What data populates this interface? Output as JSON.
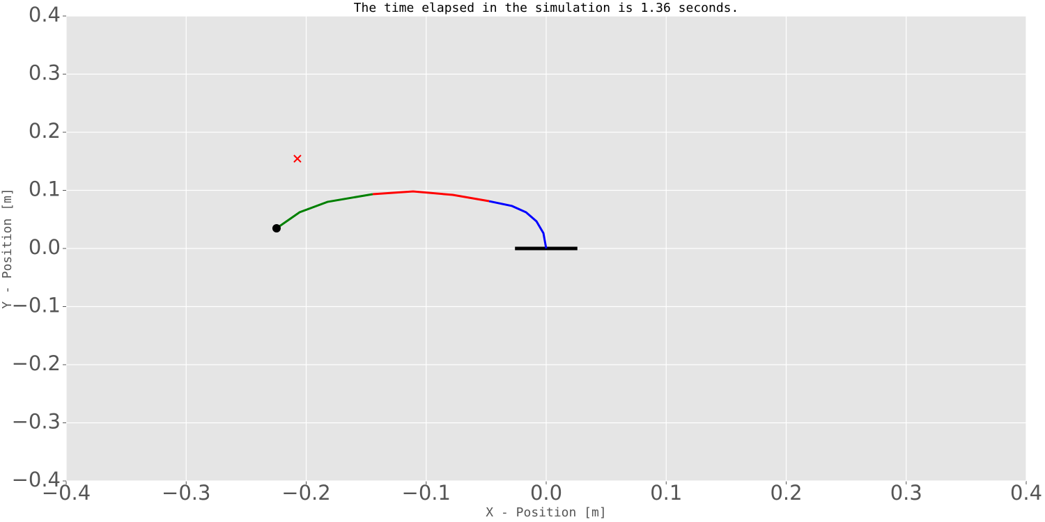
{
  "chart_data": {
    "type": "line",
    "title": "The time elapsed in the simulation is 1.36 seconds.",
    "x_label": "X - Position [m]",
    "y_label": "Y - Position [m]",
    "xlim": [
      -0.4,
      0.4
    ],
    "ylim": [
      -0.4,
      0.4
    ],
    "xticks": [
      {
        "value": -0.4,
        "label": "−0.4"
      },
      {
        "value": -0.3,
        "label": "−0.3"
      },
      {
        "value": -0.2,
        "label": "−0.2"
      },
      {
        "value": -0.1,
        "label": "−0.1"
      },
      {
        "value": 0,
        "label": "0.0"
      },
      {
        "value": 0.1,
        "label": "0.1"
      },
      {
        "value": 0.2,
        "label": "0.2"
      },
      {
        "value": 0.3,
        "label": "0.3"
      },
      {
        "value": 0.4,
        "label": "0.4"
      }
    ],
    "yticks": [
      {
        "value": -0.4,
        "label": "−0.4"
      },
      {
        "value": -0.3,
        "label": "−0.3"
      },
      {
        "value": -0.2,
        "label": "−0.2"
      },
      {
        "value": -0.1,
        "label": "−0.1"
      },
      {
        "value": 0,
        "label": "0.0"
      },
      {
        "value": 0.1,
        "label": "0.1"
      },
      {
        "value": 0.2,
        "label": "0.2"
      },
      {
        "value": 0.3,
        "label": "0.3"
      },
      {
        "value": 0.4,
        "label": "0.4"
      }
    ],
    "grid": true,
    "series": [
      {
        "style": "line",
        "color": "#000000",
        "width": 5,
        "x": [
          -0.026,
          0.026
        ],
        "values": [
          0,
          0
        ]
      },
      {
        "style": "line",
        "color": "#0000ff",
        "width": 3,
        "x": [
          0,
          -0.0023,
          -0.0081,
          -0.0168,
          -0.0285,
          -0.0476
        ],
        "values": [
          0,
          0.0263,
          0.0467,
          0.0623,
          0.0731,
          0.0814
        ]
      },
      {
        "style": "line",
        "color": "#ff0000",
        "width": 3,
        "x": [
          -0.0476,
          -0.0778,
          -0.1109,
          -0.1446
        ],
        "values": [
          0.0814,
          0.0922,
          0.0982,
          0.0934
        ]
      },
      {
        "style": "line",
        "color": "#008000",
        "width": 3,
        "x": [
          -0.1446,
          -0.1823,
          -0.2055,
          -0.2247
        ],
        "values": [
          0.0934,
          0.0802,
          0.0623,
          0.0347
        ]
      },
      {
        "style": "dot",
        "color": "#000000",
        "x": [
          -0.2247
        ],
        "values": [
          0.0347
        ]
      },
      {
        "style": "cross",
        "color": "#ff0000",
        "x": [
          -0.2073
        ],
        "values": [
          0.1545
        ]
      }
    ]
  }
}
